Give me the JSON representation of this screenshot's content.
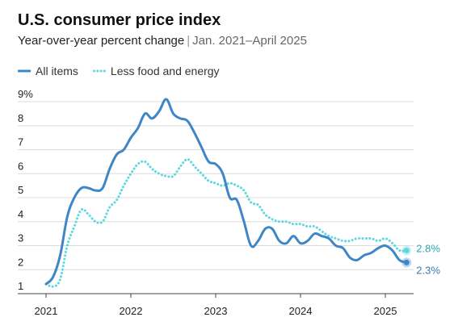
{
  "chart_data": {
    "type": "line",
    "title": "U.S. consumer price index",
    "subtitle": "Year-over-year percent change",
    "subtitle_range": "Jan. 2021–April 2025",
    "xlabel": "",
    "ylabel": "",
    "ylim": [
      1,
      9
    ],
    "xlim": [
      "2021-01",
      "2025-04"
    ],
    "grid": true,
    "legend_position": "top-left",
    "y_ticks": [
      "1",
      "2",
      "3",
      "4",
      "5",
      "6",
      "7",
      "8",
      "9%"
    ],
    "x_ticks": [
      "2021",
      "2022",
      "2023",
      "2024",
      "2025"
    ],
    "x": [
      "2021-01",
      "2021-02",
      "2021-03",
      "2021-04",
      "2021-05",
      "2021-06",
      "2021-07",
      "2021-08",
      "2021-09",
      "2021-10",
      "2021-11",
      "2021-12",
      "2022-01",
      "2022-02",
      "2022-03",
      "2022-04",
      "2022-05",
      "2022-06",
      "2022-07",
      "2022-08",
      "2022-09",
      "2022-10",
      "2022-11",
      "2022-12",
      "2023-01",
      "2023-02",
      "2023-03",
      "2023-04",
      "2023-05",
      "2023-06",
      "2023-07",
      "2023-08",
      "2023-09",
      "2023-10",
      "2023-11",
      "2023-12",
      "2024-01",
      "2024-02",
      "2024-03",
      "2024-04",
      "2024-05",
      "2024-06",
      "2024-07",
      "2024-08",
      "2024-09",
      "2024-10",
      "2024-11",
      "2024-12",
      "2025-01",
      "2025-02",
      "2025-03",
      "2025-04"
    ],
    "series": [
      {
        "name": "All items",
        "color": "#3f86c7",
        "style": "solid",
        "end_label": "2.3%",
        "values": [
          1.4,
          1.7,
          2.6,
          4.2,
          5.0,
          5.4,
          5.4,
          5.3,
          5.4,
          6.2,
          6.8,
          7.0,
          7.5,
          7.9,
          8.5,
          8.3,
          8.6,
          9.1,
          8.5,
          8.3,
          8.2,
          7.7,
          7.1,
          6.5,
          6.4,
          6.0,
          5.0,
          4.9,
          4.0,
          3.0,
          3.2,
          3.7,
          3.7,
          3.2,
          3.1,
          3.4,
          3.1,
          3.2,
          3.5,
          3.4,
          3.3,
          3.0,
          2.9,
          2.5,
          2.4,
          2.6,
          2.7,
          2.9,
          3.0,
          2.8,
          2.4,
          2.3
        ]
      },
      {
        "name": "Less food and energy",
        "color": "#5fd7e0",
        "style": "dotted",
        "end_label": "2.8%",
        "values": [
          1.4,
          1.3,
          1.6,
          3.0,
          3.8,
          4.5,
          4.3,
          4.0,
          4.0,
          4.6,
          4.9,
          5.5,
          6.0,
          6.4,
          6.5,
          6.2,
          6.0,
          5.9,
          5.9,
          6.3,
          6.6,
          6.3,
          6.0,
          5.7,
          5.6,
          5.5,
          5.6,
          5.5,
          5.3,
          4.8,
          4.7,
          4.3,
          4.1,
          4.0,
          4.0,
          3.9,
          3.9,
          3.8,
          3.8,
          3.6,
          3.4,
          3.3,
          3.2,
          3.2,
          3.3,
          3.3,
          3.3,
          3.2,
          3.3,
          3.1,
          2.8,
          2.8
        ]
      }
    ]
  }
}
